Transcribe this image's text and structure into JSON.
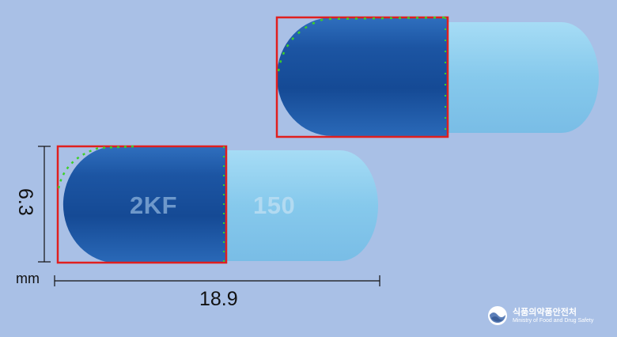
{
  "image": {
    "background_color": "#a9c0e6",
    "capsule_dark_color": "#1f5aa3",
    "capsule_light_color": "#8fd0ef",
    "detection_box_color": "#e01f1f",
    "contour_marker_color": "#3ccf2a"
  },
  "capsule_front": {
    "imprint_left": "2KF",
    "imprint_right": "150"
  },
  "dimensions": {
    "height": "6.3",
    "unit": "mm",
    "length": "18.9"
  },
  "watermark": {
    "korean": "식품의약품안전처",
    "english": "Ministry of Food and Drug Safety",
    "icon": "mfds-logo-icon"
  }
}
